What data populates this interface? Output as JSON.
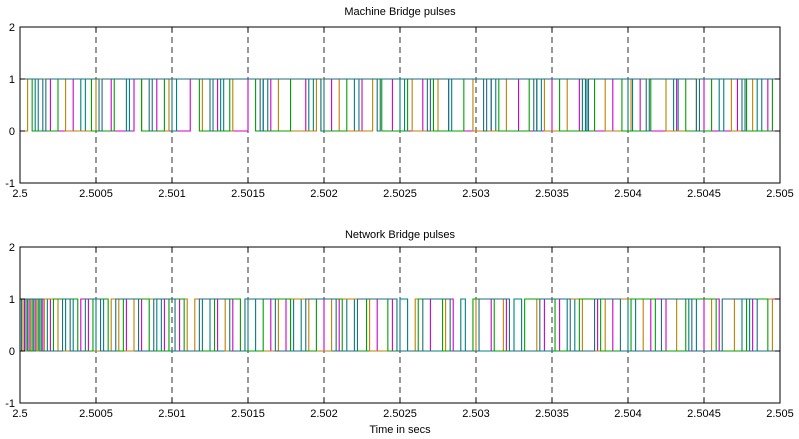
{
  "chart_data": [
    {
      "type": "line",
      "title": "Machine Bridge pulses",
      "xlabel": "",
      "ylabel": "",
      "xlim": [
        2.5,
        2.505
      ],
      "ylim": [
        -1,
        2
      ],
      "xticks": [
        2.5,
        2.5005,
        2.501,
        2.5015,
        2.502,
        2.5025,
        2.503,
        2.5035,
        2.504,
        2.5045,
        2.505
      ],
      "xtick_labels": [
        "2.5",
        "2.5005",
        "2.501",
        "2.5015",
        "2.502",
        "2.5025",
        "2.503",
        "2.5035",
        "2.504",
        "2.5045",
        "2.505"
      ],
      "yticks": [
        -1,
        0,
        1,
        2
      ],
      "ytick_labels": [
        "-1",
        "0",
        "1",
        "2"
      ],
      "grid": "x-dashed",
      "legend": "none",
      "series": [
        {
          "color": "#cc00cc",
          "x": [
            2.5,
            2.5002,
            2.50035,
            2.5006,
            2.50075,
            2.5009,
            2.50112,
            2.5013,
            2.5015,
            2.50165,
            2.50188,
            2.50205,
            2.50225,
            2.50245,
            2.50265,
            2.50282,
            2.5031,
            2.50328,
            2.5035,
            2.50368,
            2.5039,
            2.50408,
            2.50432,
            2.5045,
            2.50472,
            2.50492
          ],
          "values": [
            1,
            0,
            1,
            0,
            1,
            0,
            1,
            0,
            1,
            0,
            1,
            0,
            1,
            0,
            1,
            0,
            1,
            0,
            1,
            0,
            1,
            0,
            1,
            0,
            1,
            0
          ]
        },
        {
          "color": "#008080",
          "x": [
            2.5,
            2.5001,
            2.50012,
            2.5004,
            2.50043,
            2.5007,
            2.50072,
            2.501,
            2.50103,
            2.50132,
            2.50134,
            2.5016,
            2.50163,
            2.5019,
            2.50193,
            2.5022,
            2.50223,
            2.5025,
            2.50253,
            2.50282,
            2.50284,
            2.5031,
            2.50313,
            2.5034,
            2.50343,
            2.5037,
            2.50373,
            2.504,
            2.50403,
            2.5043,
            2.50433,
            2.5046,
            2.50463,
            2.50485,
            2.50488
          ],
          "values": [
            1,
            0,
            1,
            0,
            1,
            0,
            1,
            0,
            1,
            0,
            1,
            0,
            1,
            0,
            1,
            0,
            1,
            0,
            1,
            0,
            1,
            0,
            1,
            0,
            1,
            0,
            1,
            0,
            1,
            0,
            1,
            0,
            1,
            0,
            1
          ]
        },
        {
          "color": "#c08000",
          "x": [
            2.5,
            2.50005,
            2.5003,
            2.5005,
            2.5008,
            2.50098,
            2.5012,
            2.5014,
            2.5017,
            2.50195,
            2.5021,
            2.50232,
            2.50258,
            2.50275,
            2.50298,
            2.5032,
            2.50345,
            2.5036,
            2.50385,
            2.50402,
            2.50425,
            2.50445,
            2.50468,
            2.50482
          ],
          "values": [
            0,
            1,
            0,
            1,
            0,
            1,
            0,
            1,
            0,
            1,
            0,
            1,
            0,
            1,
            0,
            1,
            0,
            1,
            0,
            1,
            0,
            1,
            0,
            1
          ]
        },
        {
          "color": "#00a000",
          "x": [
            2.5,
            2.50008,
            2.50025,
            2.50047,
            2.50062,
            2.5008,
            2.50095,
            2.50118,
            2.50138,
            2.50155,
            2.50178,
            2.50198,
            2.50215,
            2.50238,
            2.50255,
            2.50272,
            2.50292,
            2.50315,
            2.50335,
            2.50355,
            2.50378,
            2.50396,
            2.50415,
            2.50438,
            2.50455,
            2.50478,
            2.50495
          ],
          "values": [
            1,
            0,
            1,
            0,
            1,
            0,
            1,
            0,
            1,
            0,
            1,
            0,
            1,
            0,
            1,
            0,
            1,
            0,
            1,
            0,
            1,
            0,
            1,
            0,
            1,
            0,
            1
          ]
        },
        {
          "color": "#1e6e7e",
          "x": [
            2.5,
            2.50015,
            2.50017,
            2.50052,
            2.50054,
            2.50085,
            2.50087,
            2.50125,
            2.50127,
            2.50158,
            2.5016,
            2.50198,
            2.502,
            2.50235,
            2.50237,
            2.50268,
            2.5027,
            2.50305,
            2.50307,
            2.50338,
            2.5034,
            2.50372,
            2.50374,
            2.50412,
            2.50414,
            2.50445,
            2.50447,
            2.50475,
            2.50477
          ],
          "values": [
            1,
            0,
            1,
            0,
            1,
            0,
            1,
            0,
            1,
            0,
            1,
            0,
            1,
            0,
            1,
            0,
            1,
            0,
            1,
            0,
            1,
            0,
            1,
            0,
            1,
            0,
            1,
            0,
            1
          ]
        }
      ]
    },
    {
      "type": "line",
      "title": "Network Bridge pulses",
      "xlabel": "Time in secs",
      "ylabel": "",
      "xlim": [
        2.5,
        2.505
      ],
      "ylim": [
        -1,
        2
      ],
      "xticks": [
        2.5,
        2.5005,
        2.501,
        2.5015,
        2.502,
        2.5025,
        2.503,
        2.5035,
        2.504,
        2.5045,
        2.505
      ],
      "xtick_labels": [
        "2.5",
        "2.5005",
        "2.501",
        "2.5015",
        "2.502",
        "2.5025",
        "2.503",
        "2.5035",
        "2.504",
        "2.5045",
        "2.505"
      ],
      "yticks": [
        -1,
        0,
        1,
        2
      ],
      "ytick_labels": [
        "-1",
        "0",
        "1",
        "2"
      ],
      "grid": "x-dashed",
      "legend": "none",
      "series": [
        {
          "color": "#cc00cc",
          "x": [
            2.5,
            2.50003,
            2.50006,
            2.5001,
            2.50015,
            2.5002,
            2.5004,
            2.50045,
            2.5007,
            2.5008,
            2.50095,
            2.50105,
            2.5013,
            2.5014,
            2.50165,
            2.50175,
            2.502,
            2.5021,
            2.50235,
            2.50245,
            2.5027,
            2.50285,
            2.5031,
            2.5032,
            2.50345,
            2.50355,
            2.5038,
            2.5039,
            2.50415,
            2.50425,
            2.5045,
            2.5046,
            2.50482
          ],
          "values": [
            1,
            0,
            1,
            0,
            1,
            0,
            1,
            0,
            1,
            0,
            1,
            0,
            1,
            0,
            1,
            0,
            1,
            0,
            1,
            0,
            1,
            0,
            1,
            0,
            1,
            0,
            1,
            0,
            1,
            0,
            1,
            0,
            1
          ]
        },
        {
          "color": "#008080",
          "x": [
            2.5,
            2.50004,
            2.50008,
            2.50012,
            2.50018,
            2.5003,
            2.50035,
            2.5005,
            2.50055,
            2.5009,
            2.50093,
            2.5012,
            2.50125,
            2.5015,
            2.50155,
            2.5018,
            2.50185,
            2.50215,
            2.5022,
            2.5025,
            2.50255,
            2.5029,
            2.50293,
            2.50325,
            2.5033,
            2.5036,
            2.50365,
            2.504,
            2.50405,
            2.5044,
            2.50445,
            2.50475,
            2.5048
          ],
          "values": [
            0,
            1,
            0,
            1,
            0,
            1,
            0,
            1,
            0,
            1,
            0,
            1,
            0,
            1,
            0,
            1,
            0,
            1,
            0,
            1,
            0,
            1,
            0,
            1,
            0,
            1,
            0,
            1,
            0,
            1,
            0,
            1,
            0
          ]
        },
        {
          "color": "#c08000",
          "x": [
            2.5,
            2.50002,
            2.50007,
            2.50011,
            2.50016,
            2.50025,
            2.5006,
            2.50065,
            2.50075,
            2.5011,
            2.50115,
            2.50135,
            2.5017,
            2.5019,
            2.50205,
            2.5023,
            2.5026,
            2.5028,
            2.503,
            2.50318,
            2.5034,
            2.5037,
            2.50385,
            2.5041,
            2.50432,
            2.50455,
            2.5047,
            2.50495
          ],
          "values": [
            1,
            0,
            1,
            0,
            1,
            0,
            1,
            0,
            1,
            0,
            1,
            0,
            1,
            0,
            1,
            0,
            1,
            0,
            1,
            0,
            1,
            0,
            1,
            0,
            1,
            0,
            1,
            0
          ]
        },
        {
          "color": "#00a000",
          "x": [
            2.5,
            2.50005,
            2.50009,
            2.50013,
            2.50022,
            2.50038,
            2.50048,
            2.50058,
            2.50068,
            2.50085,
            2.50098,
            2.50108,
            2.50128,
            2.50145,
            2.5016,
            2.50178,
            2.50195,
            2.50212,
            2.50228,
            2.50242,
            2.50262,
            2.50278,
            2.50298,
            2.50312,
            2.50332,
            2.50352,
            2.50368,
            2.50382,
            2.50402,
            2.50418,
            2.50438,
            2.50458,
            2.50478,
            2.50492
          ],
          "values": [
            1,
            0,
            1,
            0,
            1,
            0,
            1,
            0,
            1,
            0,
            1,
            0,
            1,
            0,
            1,
            0,
            1,
            0,
            1,
            0,
            1,
            0,
            1,
            0,
            1,
            0,
            1,
            0,
            1,
            0,
            1,
            0,
            1,
            0
          ]
        },
        {
          "color": "#1e6e7e",
          "x": [
            2.5,
            2.50001,
            2.50014,
            2.50028,
            2.50033,
            2.50043,
            2.50053,
            2.50063,
            2.50078,
            2.50088,
            2.50102,
            2.50118,
            2.50138,
            2.50148,
            2.50168,
            2.50188,
            2.50208,
            2.50222,
            2.50248,
            2.50265,
            2.50283,
            2.50302,
            2.50322,
            2.50342,
            2.50362,
            2.50378,
            2.50395,
            2.50422,
            2.50442,
            2.50462,
            2.50485
          ],
          "values": [
            0,
            1,
            0,
            1,
            0,
            1,
            0,
            1,
            0,
            1,
            0,
            1,
            0,
            1,
            0,
            1,
            0,
            1,
            0,
            1,
            0,
            1,
            0,
            1,
            0,
            1,
            0,
            1,
            0,
            1,
            0
          ]
        }
      ]
    }
  ]
}
